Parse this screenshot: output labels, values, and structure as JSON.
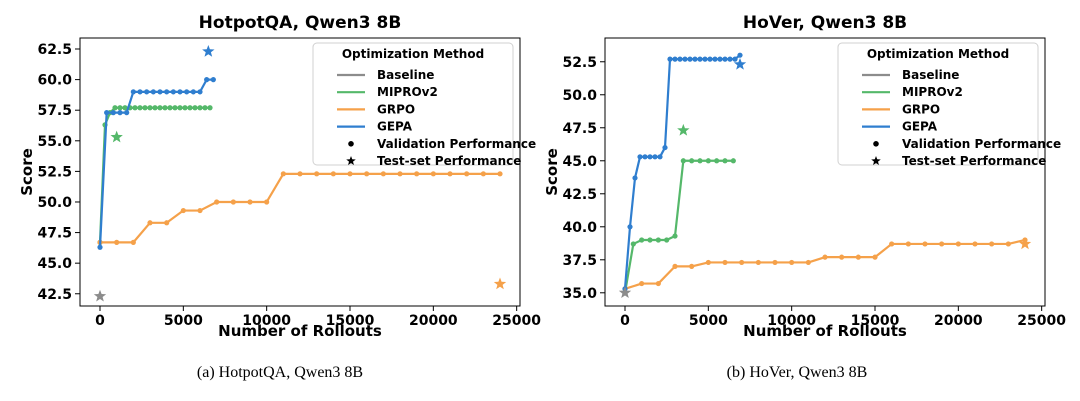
{
  "chart_data": [
    {
      "type": "line",
      "title": "HotpotQA, Qwen3 8B",
      "xlabel": "Number of Rollouts",
      "ylabel": "Score",
      "caption": "(a) HotpotQA, Qwen3 8B",
      "xlim": [
        -1200,
        25200
      ],
      "ylim": [
        41.5,
        63.4
      ],
      "xticks": [
        0,
        5000,
        10000,
        15000,
        20000,
        25000
      ],
      "yticks": [
        42.5,
        45.0,
        47.5,
        50.0,
        52.5,
        55.0,
        57.5,
        60.0,
        62.5
      ],
      "grid": false,
      "legend": {
        "title": "Optimization Method",
        "placement": "top-right",
        "entries": [
          "Baseline",
          "MIPROv2",
          "GRPO",
          "GEPA",
          "Validation Performance",
          "Test-set Performance"
        ]
      },
      "series": [
        {
          "name": "MIPROv2",
          "color": "#55b86a",
          "x": [
            0,
            300,
            600,
            900,
            1200,
            1500,
            1800,
            2100,
            2400,
            2700,
            3000,
            3300,
            3600,
            3900,
            4200,
            4500,
            4800,
            5100,
            5400,
            5700,
            6000,
            6300,
            6600
          ],
          "y": [
            46.7,
            56.3,
            57.3,
            57.7,
            57.7,
            57.7,
            57.7,
            57.7,
            57.7,
            57.7,
            57.7,
            57.7,
            57.7,
            57.7,
            57.7,
            57.7,
            57.7,
            57.7,
            57.7,
            57.7,
            57.7,
            57.7,
            57.7
          ],
          "test": {
            "x": 1000,
            "y": 55.3
          }
        },
        {
          "name": "GRPO",
          "color": "#f5a14a",
          "x": [
            0,
            1000,
            2000,
            3000,
            4000,
            5000,
            6000,
            7000,
            8000,
            9000,
            10000,
            11000,
            12000,
            13000,
            14000,
            15000,
            16000,
            17000,
            18000,
            19000,
            20000,
            21000,
            22000,
            23000,
            24000
          ],
          "y": [
            46.7,
            46.7,
            46.7,
            48.3,
            48.3,
            49.3,
            49.3,
            50.0,
            50.0,
            50.0,
            50.0,
            52.3,
            52.3,
            52.3,
            52.3,
            52.3,
            52.3,
            52.3,
            52.3,
            52.3,
            52.3,
            52.3,
            52.3,
            52.3,
            52.3
          ],
          "test": {
            "x": 24000,
            "y": 43.3
          }
        },
        {
          "name": "GEPA",
          "color": "#2f7ecf",
          "x": [
            0,
            400,
            800,
            1200,
            1600,
            2000,
            2400,
            2800,
            3200,
            3600,
            4000,
            4400,
            4800,
            5200,
            5600,
            6000,
            6400,
            6800
          ],
          "y": [
            46.3,
            57.3,
            57.3,
            57.3,
            57.3,
            59.0,
            59.0,
            59.0,
            59.0,
            59.0,
            59.0,
            59.0,
            59.0,
            59.0,
            59.0,
            59.0,
            60.0,
            60.0
          ],
          "test": {
            "x": 6500,
            "y": 62.3
          }
        },
        {
          "name": "Baseline",
          "color": "#8c8c8c",
          "x": [],
          "y": [],
          "test": {
            "x": 0,
            "y": 42.3
          }
        }
      ]
    },
    {
      "type": "line",
      "title": "HoVer, Qwen3 8B",
      "xlabel": "Number of Rollouts",
      "ylabel": "Score",
      "caption": "(b) HoVer, Qwen3 8B",
      "xlim": [
        -1200,
        25200
      ],
      "ylim": [
        34.0,
        54.3
      ],
      "xticks": [
        0,
        5000,
        10000,
        15000,
        20000,
        25000
      ],
      "yticks": [
        35.0,
        37.5,
        40.0,
        42.5,
        45.0,
        47.5,
        50.0,
        52.5
      ],
      "grid": false,
      "legend": {
        "title": "Optimization Method",
        "placement": "top-right",
        "entries": [
          "Baseline",
          "MIPROv2",
          "GRPO",
          "GEPA",
          "Validation Performance",
          "Test-set Performance"
        ]
      },
      "series": [
        {
          "name": "MIPROv2",
          "color": "#55b86a",
          "x": [
            0,
            500,
            1000,
            1500,
            2000,
            2500,
            3000,
            3500,
            4000,
            4500,
            5000,
            5500,
            6000,
            6500
          ],
          "y": [
            35.0,
            38.7,
            39.0,
            39.0,
            39.0,
            39.0,
            39.3,
            45.0,
            45.0,
            45.0,
            45.0,
            45.0,
            45.0,
            45.0
          ],
          "test": {
            "x": 3500,
            "y": 47.3
          }
        },
        {
          "name": "GRPO",
          "color": "#f5a14a",
          "x": [
            0,
            1000,
            2000,
            3000,
            4000,
            5000,
            6000,
            7000,
            8000,
            9000,
            10000,
            11000,
            12000,
            13000,
            14000,
            15000,
            16000,
            17000,
            18000,
            19000,
            20000,
            21000,
            22000,
            23000,
            24000
          ],
          "y": [
            35.3,
            35.7,
            35.7,
            37.0,
            37.0,
            37.3,
            37.3,
            37.3,
            37.3,
            37.3,
            37.3,
            37.3,
            37.7,
            37.7,
            37.7,
            37.7,
            38.7,
            38.7,
            38.7,
            38.7,
            38.7,
            38.7,
            38.7,
            38.7,
            39.0
          ],
          "test": {
            "x": 24000,
            "y": 38.7
          }
        },
        {
          "name": "GEPA",
          "color": "#2f7ecf",
          "x": [
            0,
            300,
            600,
            900,
            1200,
            1500,
            1800,
            2100,
            2400,
            2700,
            3000,
            3300,
            3600,
            3900,
            4200,
            4500,
            4800,
            5100,
            5400,
            5700,
            6000,
            6300,
            6600,
            6900
          ],
          "y": [
            35.3,
            40.0,
            43.7,
            45.3,
            45.3,
            45.3,
            45.3,
            45.3,
            46.0,
            52.7,
            52.7,
            52.7,
            52.7,
            52.7,
            52.7,
            52.7,
            52.7,
            52.7,
            52.7,
            52.7,
            52.7,
            52.7,
            52.7,
            53.0
          ],
          "test": {
            "x": 6900,
            "y": 52.3
          }
        },
        {
          "name": "Baseline",
          "color": "#8c8c8c",
          "x": [],
          "y": [],
          "test": {
            "x": 0,
            "y": 35.0
          }
        }
      ]
    }
  ]
}
